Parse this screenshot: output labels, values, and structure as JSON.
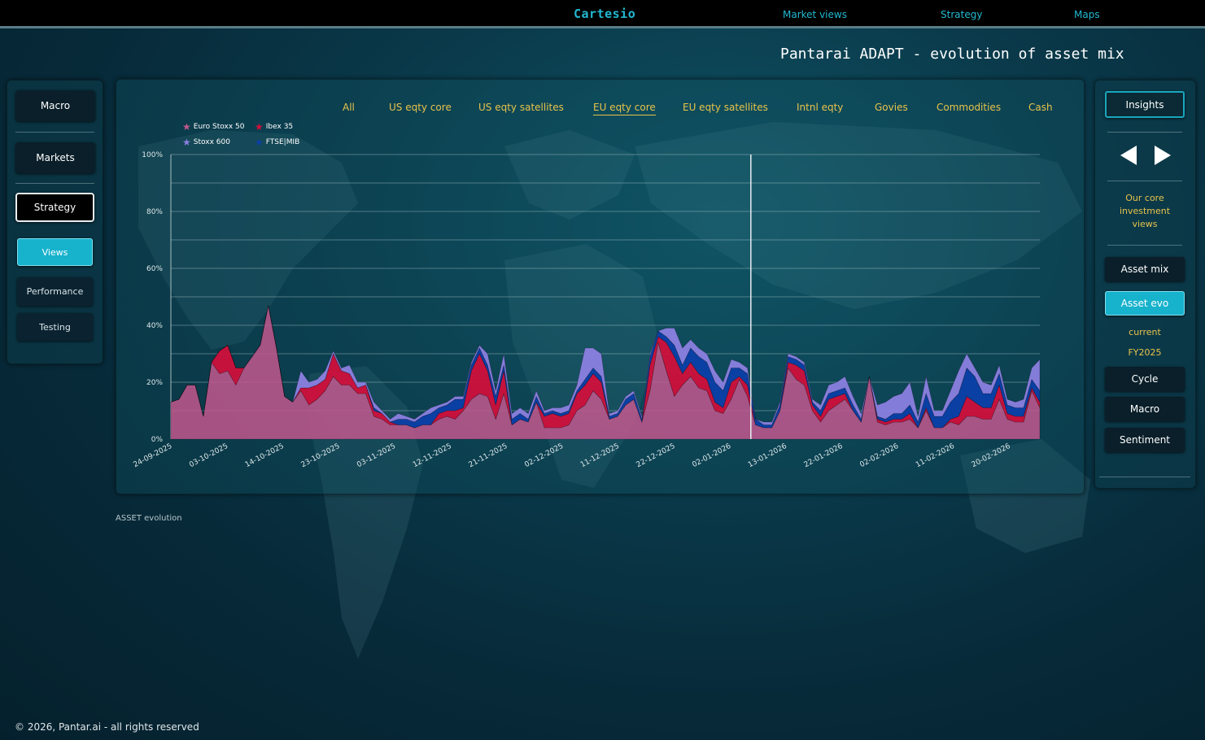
{
  "header": {
    "brand": "Cartesio",
    "nav": [
      "Market views",
      "Strategy",
      "Maps"
    ],
    "page_title": "Pantarai ADAPT - evolution of asset mix"
  },
  "left_nav": {
    "main": [
      "Macro",
      "Markets",
      "Strategy"
    ],
    "sub": [
      "Views",
      "Performance",
      "Testing"
    ],
    "active_main": "Strategy",
    "active_sub": "Views"
  },
  "chart_tabs": {
    "items": [
      "All",
      "US eqty core",
      "US eqty satellites",
      "EU eqty core",
      "EU eqty satellites",
      "Intnl eqty",
      "Govies",
      "Commodities",
      "Cash"
    ],
    "active": "EU eqty core"
  },
  "right_panel": {
    "insights": "Insights",
    "description": "Our core investment views",
    "buttons": [
      "Asset mix",
      "Asset evo"
    ],
    "active": "Asset evo",
    "period_labels": [
      "current",
      "FY2025"
    ],
    "buttons2": [
      "Cycle",
      "Macro",
      "Sentiment"
    ]
  },
  "footer": {
    "caption": "ASSET evolution",
    "copyright": "© 2026, Pantar.ai - all rights reserved"
  },
  "colors": {
    "accent": "#17b2cc",
    "tab_text": "#e8c34a",
    "euro_stoxx": "#c2588e",
    "ibex": "#d0103c",
    "stoxx600": "#8b7fe0",
    "ftse_mib": "#0b3fa8"
  },
  "chart_data": {
    "type": "area",
    "stacked": true,
    "ylabel_ticks": [
      "0%",
      "20%",
      "40%",
      "60%",
      "80%",
      "100%"
    ],
    "ylim": [
      0,
      100
    ],
    "x_tick_labels": [
      "24-09-2025",
      "03-10-2025",
      "14-10-2025",
      "23-10-2025",
      "03-11-2025",
      "12-11-2025",
      "21-11-2025",
      "02-12-2025",
      "11-12-2025",
      "22-12-2025",
      "02-01-2026",
      "13-01-2026",
      "22-01-2026",
      "02-02-2026",
      "11-02-2026",
      "20-02-2026"
    ],
    "marker_at": "02-01-2026",
    "legend_placement": "top-left",
    "series": [
      {
        "name": "Euro Stoxx 50",
        "color": "#c2588e",
        "values": [
          13,
          14,
          19,
          19,
          8,
          27,
          23,
          24,
          19,
          25,
          29,
          33,
          47,
          32,
          15,
          13,
          17,
          12,
          14,
          17,
          22,
          19,
          19,
          16,
          16,
          8,
          7,
          5,
          5,
          5,
          4,
          5,
          5,
          7,
          8,
          7,
          10,
          14,
          16,
          15,
          7,
          16,
          5,
          7,
          6,
          13,
          4,
          4,
          4,
          5,
          10,
          12,
          17,
          14,
          7,
          8,
          12,
          14,
          6,
          17,
          34,
          24,
          15,
          19,
          22,
          18,
          17,
          10,
          9,
          14,
          21,
          15,
          5,
          4,
          4,
          10,
          25,
          21,
          19,
          10,
          6,
          10,
          12,
          14,
          10,
          6,
          22,
          6,
          5,
          6,
          6,
          7,
          4,
          10,
          4,
          4,
          6,
          5,
          8,
          8,
          7,
          7,
          14,
          7,
          6,
          6,
          17,
          11
        ]
      },
      {
        "name": "Ibex 35",
        "color": "#d0103c",
        "values": [
          0,
          0,
          0,
          0,
          0,
          0,
          8,
          9,
          6,
          0,
          0,
          0,
          0,
          0,
          0,
          0,
          1,
          6,
          5,
          4,
          8,
          5,
          4,
          2,
          3,
          2,
          2,
          1,
          0,
          0,
          0,
          0,
          0,
          2,
          2,
          3,
          1,
          10,
          14,
          9,
          5,
          8,
          0,
          0,
          0,
          0,
          4,
          5,
          4,
          4,
          6,
          7,
          6,
          6,
          0,
          0,
          0,
          0,
          0,
          9,
          2,
          10,
          14,
          4,
          5,
          5,
          4,
          3,
          2,
          6,
          1,
          4,
          0,
          0,
          0,
          0,
          2,
          5,
          5,
          2,
          2,
          4,
          3,
          2,
          0,
          0,
          0,
          1,
          1,
          1,
          1,
          2,
          0,
          1,
          0,
          0,
          1,
          3,
          7,
          5,
          4,
          4,
          5,
          2,
          2,
          2,
          1,
          2
        ]
      },
      {
        "name": "FTSE|MIB",
        "color": "#0b3fa8",
        "values": [
          0,
          0,
          0,
          0,
          0,
          0,
          0,
          0,
          0,
          0,
          0,
          0,
          0,
          0,
          0,
          0,
          0,
          0,
          0,
          0,
          0,
          0,
          0,
          0,
          0,
          1,
          0,
          0,
          2,
          2,
          2,
          3,
          4,
          2,
          2,
          4,
          3,
          2,
          2,
          2,
          3,
          2,
          2,
          2,
          1,
          2,
          1,
          1,
          1,
          1,
          1,
          2,
          2,
          2,
          1,
          1,
          2,
          2,
          1,
          3,
          2,
          2,
          4,
          3,
          5,
          6,
          6,
          7,
          6,
          5,
          3,
          4,
          2,
          1,
          1,
          2,
          2,
          2,
          2,
          1,
          2,
          2,
          2,
          2,
          2,
          1,
          0,
          1,
          1,
          2,
          2,
          3,
          2,
          5,
          4,
          4,
          6,
          8,
          10,
          9,
          5,
          5,
          4,
          3,
          3,
          3,
          3,
          4
        ]
      },
      {
        "name": "Stoxx 600",
        "color": "#8b7fe0",
        "values": [
          0,
          0,
          0,
          0,
          0,
          0,
          0,
          0,
          0,
          0,
          0,
          0,
          0,
          0,
          0,
          0,
          6,
          2,
          2,
          3,
          1,
          1,
          3,
          2,
          1,
          2,
          1,
          1,
          2,
          1,
          1,
          1,
          2,
          1,
          1,
          1,
          1,
          1,
          1,
          4,
          2,
          4,
          2,
          2,
          2,
          2,
          1,
          1,
          2,
          2,
          2,
          11,
          7,
          8,
          1,
          1,
          1,
          1,
          1,
          1,
          0,
          3,
          6,
          6,
          3,
          3,
          3,
          4,
          3,
          3,
          2,
          2,
          0,
          1,
          1,
          1,
          1,
          1,
          1,
          1,
          2,
          3,
          3,
          4,
          3,
          2,
          0,
          4,
          6,
          6,
          7,
          8,
          2,
          6,
          2,
          2,
          4,
          8,
          5,
          3,
          4,
          3,
          3,
          2,
          2,
          3,
          4,
          11
        ]
      }
    ]
  }
}
